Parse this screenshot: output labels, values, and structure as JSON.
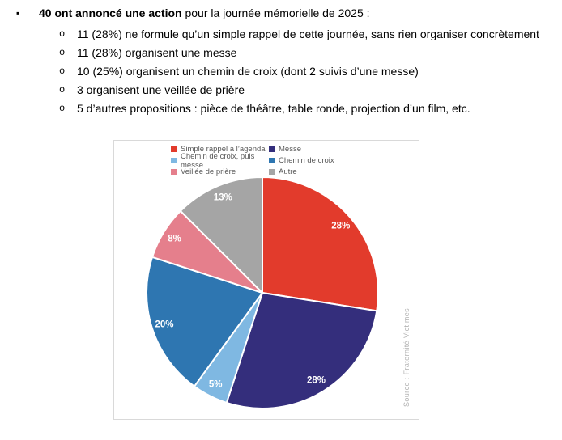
{
  "document": {
    "bullet_marker": "▪",
    "sub_bullet_marker": "o",
    "intro_bold": "40 ont annoncé une action",
    "intro_rest": " pour la journée mémorielle de 2025 :",
    "sub_bullets": [
      "11 (28%) ne formule qu’un simple rappel de cette journée, sans rien organiser concrètement",
      "11 (28%) organisent une messe",
      "10 (25%) organisent un chemin de croix (dont 2 suivis d’une messe)",
      "3 organisent une veillée de prière",
      "5 d’autres propositions : pièce de théâtre, table ronde, projection d’un film, etc."
    ]
  },
  "chart_data": {
    "type": "pie",
    "start_angle_deg": 0,
    "direction": "clockwise",
    "legend_position": "top",
    "legend_columns": 2,
    "legend_text_color": "#595959",
    "data_label_color": "#ffffff",
    "frame_border_color": "#d9d9d9",
    "source_note": "Source : Fraternité Victimes",
    "slices": [
      {
        "label": "Simple rappel à l’agenda",
        "value_pct": 27.5,
        "data_label": "28%",
        "color": "#e23b2c"
      },
      {
        "label": "Messe",
        "value_pct": 27.5,
        "data_label": "28%",
        "color": "#342e7c"
      },
      {
        "label": "Chemin de croix, puis messe",
        "value_pct": 5,
        "data_label": "5%",
        "color": "#7fb8e2"
      },
      {
        "label": "Chemin de croix",
        "value_pct": 20,
        "data_label": "20%",
        "color": "#2e76b1"
      },
      {
        "label": "Veillée de prière",
        "value_pct": 7.5,
        "data_label": "8%",
        "color": "#e57f8c"
      },
      {
        "label": "Autre",
        "value_pct": 12.5,
        "data_label": "13%",
        "color": "#a5a5a5"
      }
    ]
  }
}
